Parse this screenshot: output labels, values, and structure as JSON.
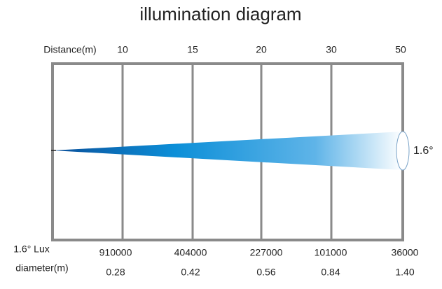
{
  "title": "illumination diagram",
  "distance_label": "Distance(m)",
  "distances": [
    "10",
    "15",
    "20",
    "30",
    "50"
  ],
  "angle_label": "1.6°",
  "lux_label": "1.6° Lux",
  "lux": [
    "910000",
    "404000",
    "227000",
    "101000",
    "36000"
  ],
  "diameter_label": "diameter(m)",
  "diameters": [
    "0.28",
    "0.42",
    "0.56",
    "0.84",
    "1.40"
  ]
}
